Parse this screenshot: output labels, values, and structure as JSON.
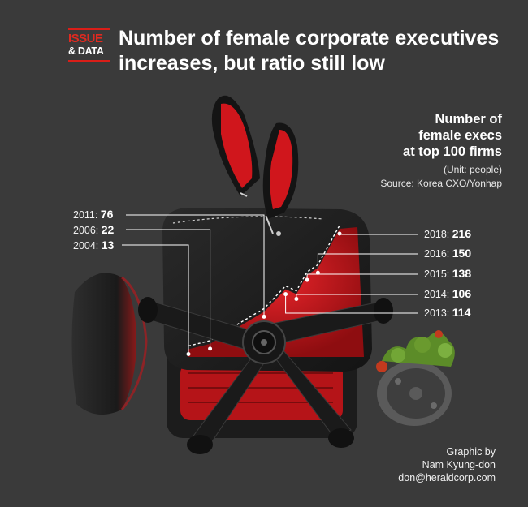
{
  "header": {
    "brand_top": "ISSUE",
    "brand_bottom": "& DATA",
    "headline_line1": "Number of female corporate executives",
    "headline_line2": "increases, but ratio still low"
  },
  "chart_data": {
    "type": "line",
    "title_lines": [
      "Number of",
      "female execs",
      "at top 100 firms"
    ],
    "unit": "(Unit: people)",
    "source": "Source: Korea CXO/Yonhap",
    "series": [
      {
        "points": [
          {
            "year": "2004",
            "value": 13
          },
          {
            "year": "2006",
            "value": 22
          },
          {
            "year": "2011",
            "value": 76
          },
          {
            "year": "2013",
            "value": 114
          },
          {
            "year": "2014",
            "value": 106
          },
          {
            "year": "2015",
            "value": 138
          },
          {
            "year": "2016",
            "value": 150
          },
          {
            "year": "2018",
            "value": 216
          }
        ]
      }
    ]
  },
  "labels": {
    "y2011": "2011:",
    "v2011": "76",
    "y2006": "2006:",
    "v2006": "22",
    "y2004": "2004:",
    "v2004": "13",
    "y2018": "2018:",
    "v2018": "216",
    "y2016": "2016:",
    "v2016": "150",
    "y2015": "2015:",
    "v2015": "138",
    "y2014": "2014:",
    "v2014": "106",
    "y2013": "2013:",
    "v2013": "114"
  },
  "credit": {
    "line1": "Graphic by",
    "line2": "Nam Kyung-don",
    "line3": "don@heraldcorp.com"
  },
  "colors": {
    "background": "#3a3a3a",
    "brand_red": "#d91e18",
    "seat_red": "#c8141a",
    "chair_black": "#1e1e1e",
    "plant_green": "#6a9a2e"
  }
}
